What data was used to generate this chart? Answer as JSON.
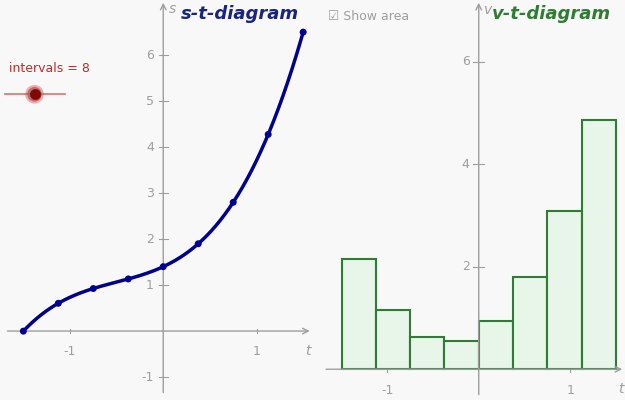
{
  "title_st": "s-t-diagram",
  "title_vt": "v-t-diagram",
  "title_color_st": "#1a237e",
  "title_color_vt": "#2e7d32",
  "bg_color": "#f8f8f8",
  "curve_color": "#00008b",
  "bar_fill_color": "#e8f5e9",
  "bar_edge_color": "#2e7d32",
  "intervals_label": "intervals = 8",
  "intervals_label_color": "#c62828",
  "show_area_label": "Show area",
  "t_start": -1.5,
  "t_end": 1.5,
  "n_intervals": 8,
  "xlim_st": [
    -1.75,
    1.6
  ],
  "ylim_st": [
    -1.5,
    7.2
  ],
  "xlim_vt": [
    -1.75,
    1.6
  ],
  "ylim_vt": [
    -0.6,
    7.2
  ],
  "xticks_st": [
    -1,
    1
  ],
  "yticks_st": [
    -1,
    1,
    2,
    3,
    4,
    5,
    6
  ],
  "xticks_vt": [
    -1,
    1
  ],
  "yticks_vt": [
    2,
    4,
    6
  ],
  "tick_color": "#9e9e9e",
  "axis_color": "#9e9e9e",
  "s_label": "s",
  "t_label_st": "t",
  "v_label": "v",
  "t_label_vt": "t",
  "dot_color": "#00008b",
  "dot_size": 25,
  "slider_line_color": "#e07070",
  "slider_dot_color": "#8b0000",
  "slider_dot_outer_color": "#cc4444"
}
